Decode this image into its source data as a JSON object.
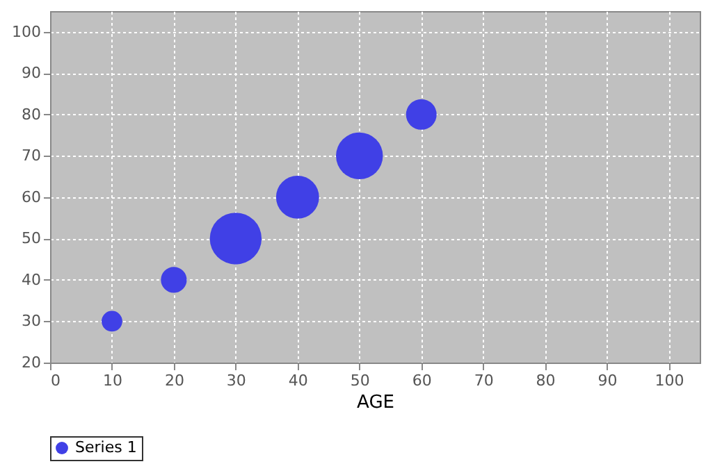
{
  "chart_data": {
    "type": "bubble",
    "xlabel": "AGE",
    "series": [
      {
        "name": "Series 1",
        "color": "#4040e6",
        "x": [
          10,
          20,
          30,
          40,
          50,
          60
        ],
        "values": [
          30,
          40,
          50,
          60,
          70,
          80
        ],
        "sizes": [
          0.16,
          0.25,
          1,
          0.69,
          0.82,
          0.35
        ]
      }
    ],
    "xlim": [
      0,
      105
    ],
    "xticks": [
      0,
      10,
      20,
      30,
      40,
      50,
      60,
      70,
      80,
      90,
      100
    ],
    "ylim": [
      20,
      105
    ],
    "yticks": [
      20,
      30,
      40,
      50,
      60,
      70,
      80,
      90,
      100
    ],
    "grid": true,
    "legend": "bottom",
    "marker": "circle"
  }
}
